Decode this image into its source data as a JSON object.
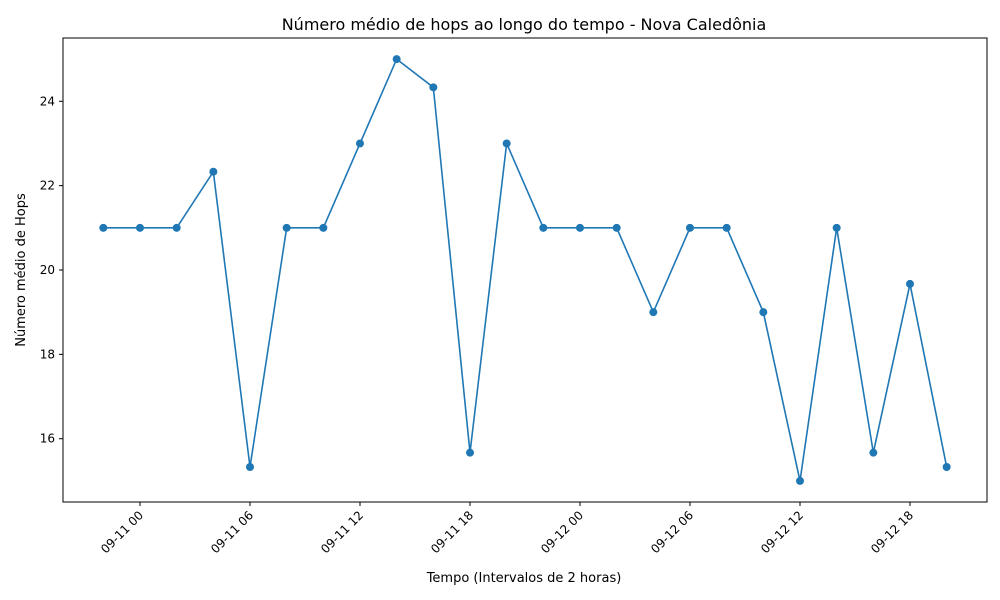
{
  "chart_data": {
    "type": "line",
    "title": "Número médio de hops ao longo do tempo - Nova Caledônia",
    "xlabel": "Tempo (Intervalos de 2 horas)",
    "ylabel": "Número médio de Hops",
    "x_unit": "hours",
    "x_tick_labels": [
      "09-11 00",
      "09-11 06",
      "09-11 12",
      "09-11 18",
      "09-12 00",
      "09-12 06",
      "09-12 12",
      "09-12 18"
    ],
    "x_tick_values": [
      0,
      6,
      12,
      18,
      24,
      30,
      36,
      42
    ],
    "xlim": [
      -4.2,
      46.2
    ],
    "y_ticks": [
      16,
      18,
      20,
      22,
      24
    ],
    "ylim": [
      14.5,
      25.5
    ],
    "grid": false,
    "series": [
      {
        "color": "#1f77b4",
        "x": [
          -2,
          0,
          2,
          4,
          6,
          8,
          10,
          12,
          14,
          16,
          18,
          20,
          22,
          24,
          26,
          28,
          30,
          32,
          34,
          36,
          38,
          40,
          42,
          44
        ],
        "values": [
          21,
          21,
          21,
          22.33,
          15.33,
          21,
          21,
          23,
          25,
          24.33,
          15.67,
          23,
          21,
          21,
          21,
          19,
          21,
          21,
          19,
          15,
          21,
          15.67,
          19.67,
          15.33
        ]
      }
    ]
  }
}
